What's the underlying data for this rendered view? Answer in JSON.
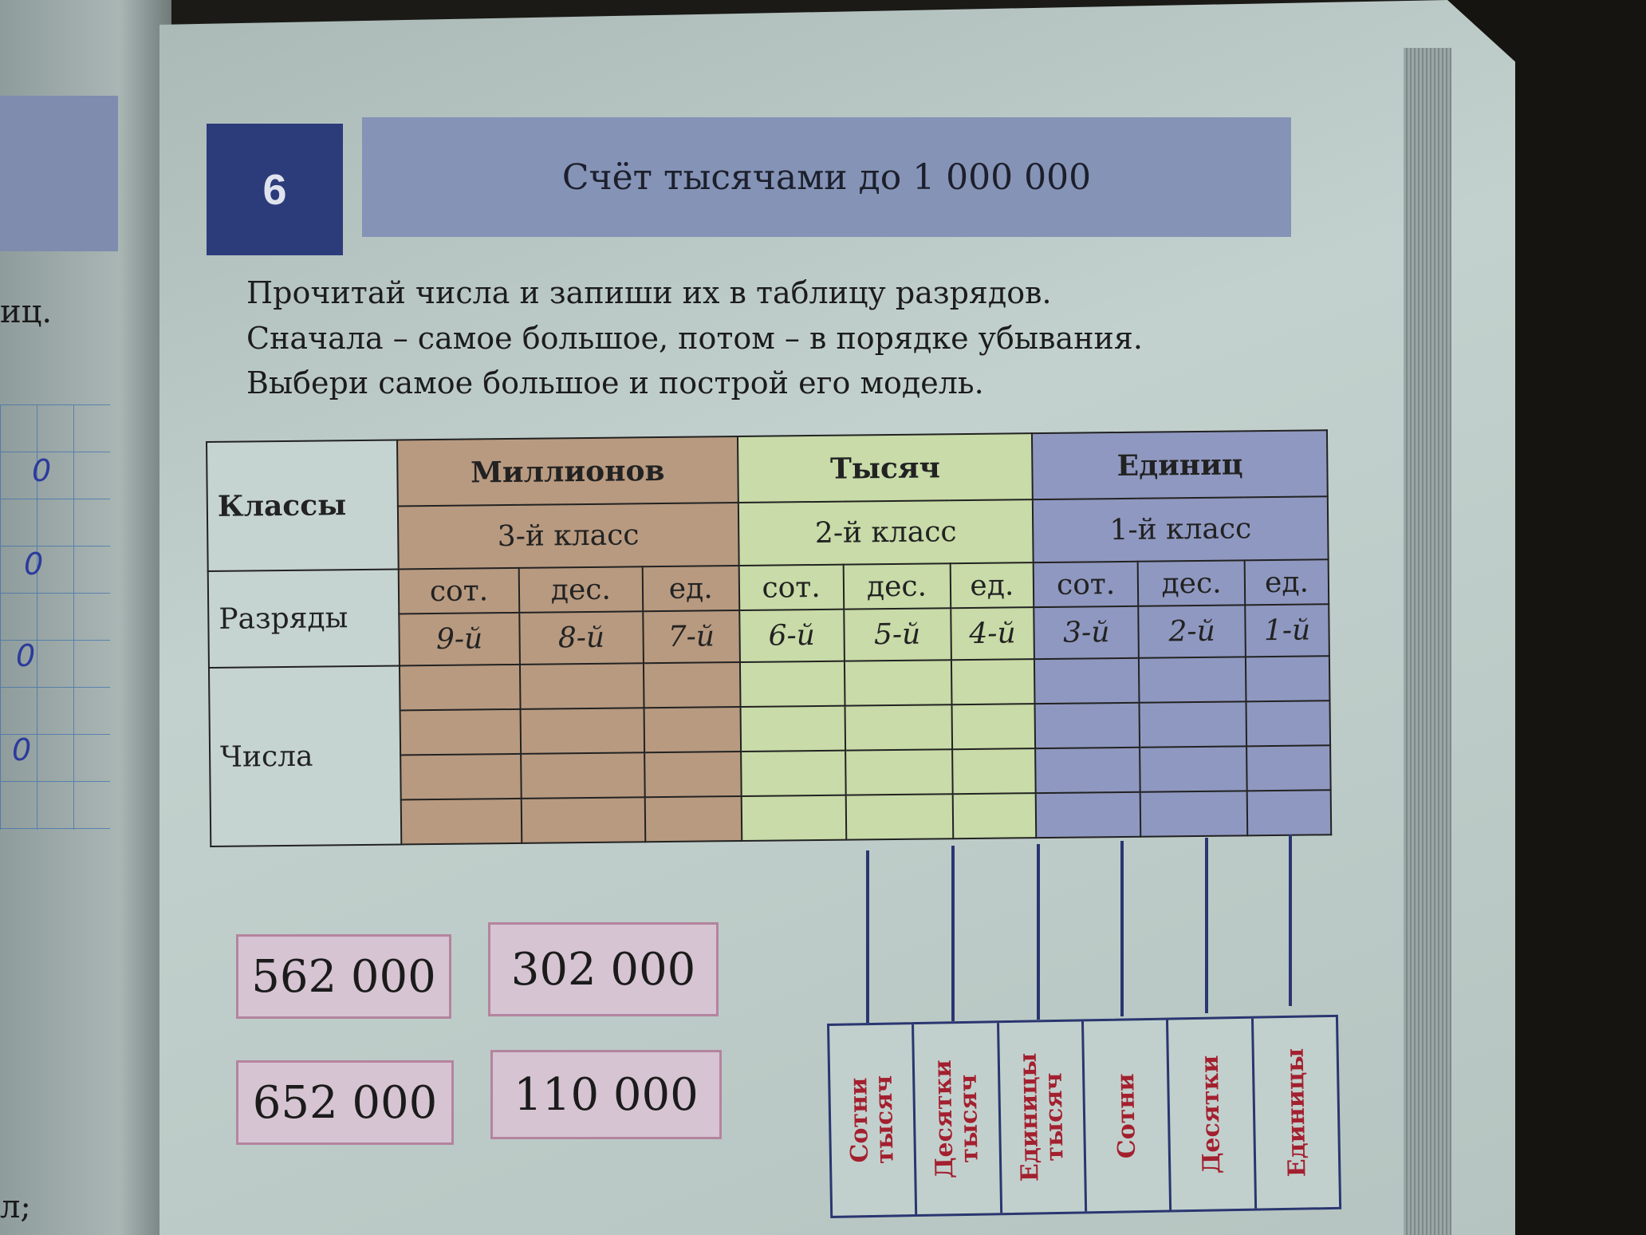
{
  "left_page": {
    "fragment_top": "иц.",
    "fragment_bottom": "л;",
    "grid_marks": [
      "0",
      "0",
      "0",
      "0"
    ]
  },
  "lesson": {
    "number": "6",
    "title": "Счёт тысячами до 1 000 000"
  },
  "instructions": [
    "Прочитай числа и запиши их в таблицу разрядов.",
    "Сначала – самое большое, потом – в порядке убывания.",
    "Выбери самое большое и построй его модель."
  ],
  "table": {
    "row_labels": {
      "classes": "Классы",
      "ranks": "Разряды",
      "numbers": "Числа"
    },
    "classes": [
      {
        "name": "Миллионов",
        "number": "3-й класс",
        "color": "#b89a80"
      },
      {
        "name": "Тысяч",
        "number": "2-й класс",
        "color": "#c8dba8"
      },
      {
        "name": "Единиц",
        "number": "1-й класс",
        "color": "#8f98c0"
      }
    ],
    "ranks": [
      {
        "name": "сот.",
        "index": "9-й"
      },
      {
        "name": "дес.",
        "index": "8-й"
      },
      {
        "name": "ед.",
        "index": "7-й"
      },
      {
        "name": "сот.",
        "index": "6-й"
      },
      {
        "name": "дес.",
        "index": "5-й"
      },
      {
        "name": "ед.",
        "index": "4-й"
      },
      {
        "name": "сот.",
        "index": "3-й"
      },
      {
        "name": "дес.",
        "index": "2-й"
      },
      {
        "name": "ед.",
        "index": "1-й"
      }
    ]
  },
  "numbers": [
    "562 000",
    "302 000",
    "652 000",
    "110 000"
  ],
  "abacus": {
    "labels": [
      "Сотни\nтысяч",
      "Десятки\nтысяч",
      "Единицы\nтысяч",
      "Сотни",
      "Десятки",
      "Единицы"
    ]
  }
}
